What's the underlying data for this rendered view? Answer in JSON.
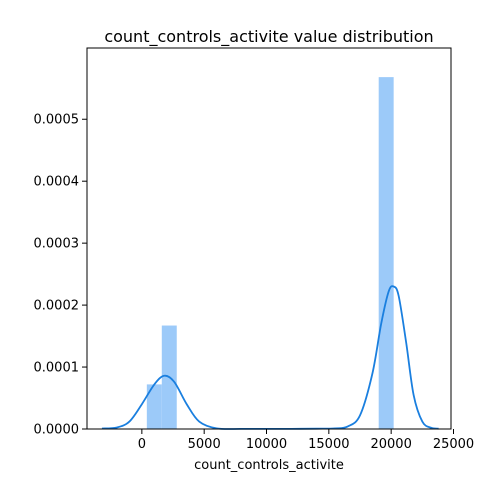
{
  "chart_data": {
    "type": "bar",
    "title": "count_controls_activite value distribution",
    "xlabel": "count_controls_activite",
    "ylabel": "",
    "xlim": [
      -4400,
      24800
    ],
    "ylim": [
      0,
      0.000615
    ],
    "x_ticks": [
      0,
      5000,
      10000,
      15000,
      20000,
      25000
    ],
    "y_ticks": [
      0,
      0.0001,
      0.0002,
      0.0003,
      0.0004,
      0.0005
    ],
    "x_tick_labels": [
      "0",
      "5000",
      "10000",
      "15000",
      "20000",
      "25000"
    ],
    "y_tick_labels": [
      "0.0000",
      "0.0001",
      "0.0002",
      "0.0003",
      "0.0004",
      "0.0005"
    ],
    "grid": false,
    "bars": [
      {
        "x0": 400,
        "x1": 1600,
        "value": 7.2e-05
      },
      {
        "x0": 1600,
        "x1": 2800,
        "value": 0.000167
      },
      {
        "x0": 19000,
        "x1": 20200,
        "value": 0.000568
      }
    ],
    "kde": {
      "x": [
        -3200,
        -2000,
        -1000,
        0,
        1000,
        1800,
        2600,
        3600,
        4600,
        6000,
        8000,
        10000,
        12000,
        14000,
        15500,
        16500,
        17500,
        18500,
        19200,
        19800,
        20200,
        20600,
        21200,
        21800,
        22500,
        23200,
        23800
      ],
      "y": [
        8e-07,
        2.5e-06,
        1.2e-05,
        4e-05,
        7.2e-05,
        8.6e-05,
        7.6e-05,
        4e-05,
        1.2e-05,
        1e-06,
        2e-07,
        2e-07,
        2e-07,
        5e-07,
        1e-06,
        4e-06,
        2.2e-05,
        9e-05,
        0.00017,
        0.000222,
        0.00023,
        0.000215,
        0.00014,
        5.5e-05,
        1.2e-05,
        2e-06,
        5e-07
      ]
    },
    "colors": {
      "bar": "#9ccaf9",
      "kde": "#1a7fdf"
    }
  }
}
